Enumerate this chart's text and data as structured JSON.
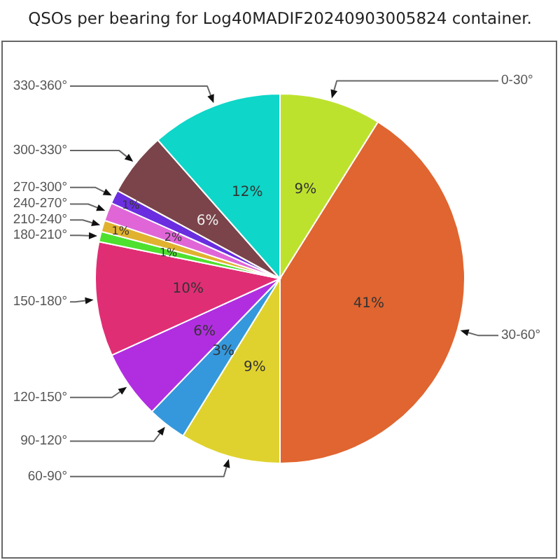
{
  "chart_data": {
    "type": "pie",
    "title": "QSOs per bearing for Log40MADIF20240903005824 container.",
    "categories": [
      "0-30°",
      "30-60°",
      "60-90°",
      "90-120°",
      "120-150°",
      "150-180°",
      "180-210°",
      "210-240°",
      "240-270°",
      "270-300°",
      "300-330°",
      "330-360°"
    ],
    "values": [
      8.9,
      41.1,
      8.8,
      3.4,
      6.0,
      10.0,
      0.9,
      1.0,
      1.6,
      1.2,
      5.6,
      11.5
    ],
    "colors": [
      "#bde22e",
      "#e06530",
      "#e0d22e",
      "#3598dc",
      "#b12ee0",
      "#e02e75",
      "#4ee02e",
      "#e0b22e",
      "#e066d8",
      "#6a2ee0",
      "#7a444a",
      "#0ed6c8"
    ],
    "value_labels": [
      "9%",
      "41%",
      "9%",
      "3%",
      "6%",
      "10%",
      "1%",
      "1%",
      "2%",
      "1%",
      "6%",
      "12%"
    ]
  }
}
